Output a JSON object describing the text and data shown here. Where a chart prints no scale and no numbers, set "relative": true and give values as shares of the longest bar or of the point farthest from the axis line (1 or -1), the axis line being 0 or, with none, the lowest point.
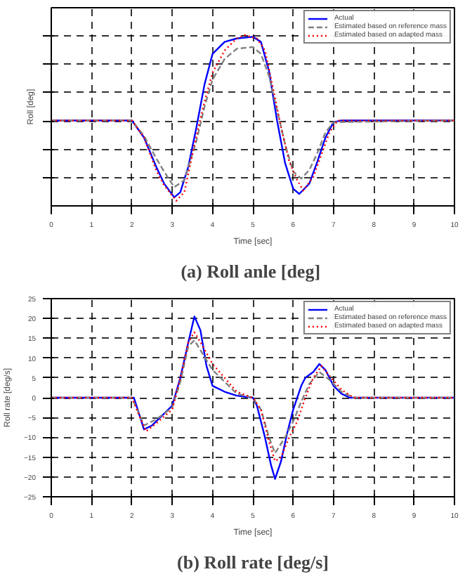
{
  "chart_data": [
    {
      "type": "line",
      "title": "(a)  Roll anle [deg]",
      "xlabel": "Time [sec]",
      "ylabel": "Roll [deg]",
      "relative": true,
      "xlim": [
        0,
        10
      ],
      "xticks": [
        0,
        1,
        2,
        3,
        4,
        5,
        6,
        7,
        8,
        9,
        10
      ],
      "grid": true,
      "legend": "top right",
      "series": [
        {
          "name": "Actual",
          "color": "#0000ff",
          "line_style": "solid",
          "x": [
            0,
            2.0,
            2.3,
            2.6,
            2.8,
            3.05,
            3.2,
            3.4,
            3.6,
            3.8,
            4.0,
            4.3,
            4.6,
            5.0,
            5.2,
            5.4,
            5.6,
            5.8,
            6.0,
            6.15,
            6.4,
            6.6,
            6.8,
            7.0,
            7.2,
            10
          ],
          "values": [
            0.5,
            0.5,
            0.4,
            0.23,
            0.13,
            0.05,
            0.08,
            0.23,
            0.46,
            0.71,
            0.89,
            0.96,
            0.98,
            0.99,
            0.96,
            0.79,
            0.5,
            0.25,
            0.1,
            0.07,
            0.13,
            0.26,
            0.4,
            0.49,
            0.5,
            0.5
          ]
        },
        {
          "name": "Estimated based on reference mass",
          "color": "#808080",
          "line_style": "dashed",
          "x": [
            0,
            2.0,
            2.3,
            2.6,
            2.8,
            3.05,
            3.3,
            3.6,
            3.8,
            4.0,
            4.3,
            4.6,
            5.0,
            5.2,
            5.4,
            5.6,
            5.8,
            6.0,
            6.2,
            6.4,
            6.6,
            6.8,
            7.0,
            10
          ],
          "values": [
            0.5,
            0.5,
            0.41,
            0.28,
            0.2,
            0.11,
            0.15,
            0.38,
            0.58,
            0.74,
            0.86,
            0.92,
            0.93,
            0.89,
            0.76,
            0.56,
            0.36,
            0.2,
            0.16,
            0.21,
            0.31,
            0.43,
            0.49,
            0.5
          ]
        },
        {
          "name": "Estimated based on adapted mass",
          "color": "#ff0000",
          "line_style": "dotted",
          "x": [
            0,
            2.0,
            2.3,
            2.6,
            2.8,
            3.1,
            3.3,
            3.6,
            3.8,
            4.0,
            4.3,
            4.6,
            4.8,
            5.1,
            5.3,
            5.5,
            5.7,
            5.9,
            6.1,
            6.25,
            6.5,
            6.7,
            6.9,
            7.1,
            7.5,
            8.0,
            10
          ],
          "values": [
            0.5,
            0.5,
            0.4,
            0.21,
            0.12,
            0.03,
            0.08,
            0.41,
            0.61,
            0.78,
            0.91,
            0.98,
            1,
            0.98,
            0.91,
            0.69,
            0.46,
            0.26,
            0.15,
            0.09,
            0.17,
            0.3,
            0.43,
            0.5,
            0.5,
            0.5,
            0.5
          ]
        }
      ]
    },
    {
      "type": "line",
      "title": "(b) Roll rate [deg/s]",
      "xlabel": "Time [sec]",
      "ylabel": "Roll rate [deg/s]",
      "xlim": [
        0,
        10
      ],
      "xticks": [
        0,
        1,
        2,
        3,
        4,
        5,
        6,
        7,
        8,
        9,
        10
      ],
      "ylim": [
        -25,
        25
      ],
      "yticks": [
        -25,
        -20,
        -15,
        -10,
        -5,
        0,
        5,
        10,
        15,
        20,
        25
      ],
      "grid": true,
      "legend": "top right",
      "series": [
        {
          "name": "Actual",
          "color": "#0000ff",
          "line_style": "solid",
          "x": [
            0,
            2.0,
            2.05,
            2.3,
            2.5,
            2.8,
            3.0,
            3.2,
            3.4,
            3.55,
            3.7,
            3.85,
            4.0,
            4.3,
            4.6,
            5.0,
            5.1,
            5.3,
            5.45,
            5.55,
            5.7,
            5.85,
            6.0,
            6.2,
            6.3,
            6.5,
            6.65,
            6.8,
            7.0,
            7.2,
            7.4,
            10
          ],
          "values": [
            0,
            0,
            0,
            -8,
            -7,
            -4,
            -2,
            5,
            14,
            20.5,
            17,
            8,
            3,
            1.5,
            0.5,
            0,
            -2,
            -10,
            -17,
            -20.5,
            -16,
            -9,
            -3,
            3,
            5,
            6.5,
            8.5,
            7,
            3,
            1,
            0,
            0
          ]
        },
        {
          "name": "Estimated based on reference mass",
          "color": "#808080",
          "line_style": "dashed",
          "x": [
            0,
            2.0,
            2.3,
            2.6,
            3.0,
            3.2,
            3.4,
            3.55,
            3.7,
            4.0,
            4.3,
            4.6,
            5.0,
            5.2,
            5.4,
            5.55,
            5.8,
            6.0,
            6.2,
            6.4,
            6.65,
            6.9,
            7.2,
            7.5,
            10
          ],
          "values": [
            0,
            0,
            -7,
            -5.5,
            -2.5,
            4,
            13,
            14.5,
            12,
            7,
            4,
            1,
            0,
            -3,
            -10,
            -14,
            -10,
            -6,
            -1,
            3.5,
            6.5,
            4.5,
            1.5,
            0,
            0
          ]
        },
        {
          "name": "Estimated based on adapted mass",
          "color": "#ff0000",
          "line_style": "dotted",
          "x": [
            0,
            2.0,
            2.2,
            2.35,
            2.6,
            3.0,
            3.2,
            3.4,
            3.55,
            3.7,
            4.0,
            4.3,
            4.6,
            5.0,
            5.2,
            5.4,
            5.55,
            5.7,
            5.9,
            6.1,
            6.3,
            6.5,
            6.7,
            6.9,
            7.2,
            7.5,
            10
          ],
          "values": [
            0,
            0,
            -5,
            -8.5,
            -6.5,
            -3,
            5,
            14,
            16.5,
            14,
            8.5,
            5,
            1.5,
            0,
            -3,
            -11,
            -16,
            -15,
            -10,
            -6,
            0,
            5,
            8,
            5.5,
            2,
            0,
            0
          ]
        }
      ]
    }
  ]
}
